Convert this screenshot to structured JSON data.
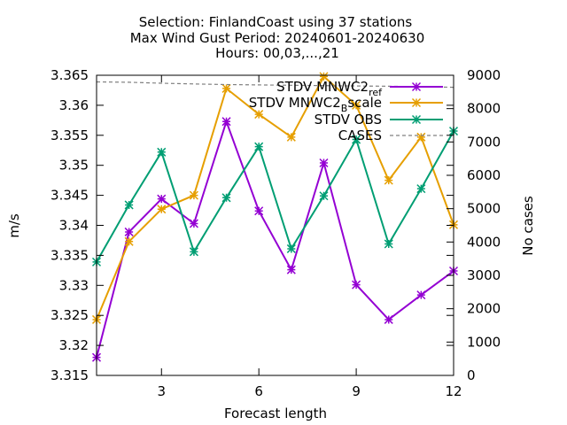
{
  "chart_data": {
    "type": "line",
    "title_lines": [
      "Selection: FinlandCoast using    37 stations",
      "Max Wind Gust   Period: 20240601-20240630",
      "Hours: 00,03,...,21"
    ],
    "xlabel": "Forecast length",
    "ylabel": "m/s",
    "y2label": "No cases",
    "xlim": [
      1,
      12
    ],
    "ylim": [
      3.315,
      3.365
    ],
    "y2lim": [
      0,
      9000
    ],
    "xticks": [
      3,
      6,
      9,
      12
    ],
    "yticks": [
      3.315,
      3.32,
      3.325,
      3.33,
      3.335,
      3.34,
      3.345,
      3.35,
      3.355,
      3.36,
      3.365
    ],
    "y2ticks": [
      0,
      1000,
      2000,
      3000,
      4000,
      5000,
      6000,
      7000,
      8000,
      9000
    ],
    "legend_position": "top-right",
    "grid": false,
    "x": [
      1,
      2,
      3,
      4,
      5,
      6,
      7,
      8,
      9,
      10,
      11,
      12
    ],
    "series": [
      {
        "name": "STDV MNWC2_ref",
        "label_main": "STDV MNWC2",
        "label_sub": "ref",
        "color": "#9400d3",
        "axis": "y1",
        "values": [
          3.318,
          3.3389,
          3.3444,
          3.3403,
          3.3573,
          3.3424,
          3.3326,
          3.3504,
          3.3301,
          3.3243,
          3.3284,
          3.3324
        ]
      },
      {
        "name": "STDV MNWC2_Bscale",
        "label_main": "STDV MNWC2",
        "label_sub": "B",
        "label_tail": "scale",
        "color": "#e69f00",
        "axis": "y1",
        "values": [
          3.3243,
          3.3373,
          3.3427,
          3.345,
          3.3628,
          3.3585,
          3.3547,
          3.3648,
          3.36,
          3.3475,
          3.3547,
          3.3401
        ]
      },
      {
        "name": "STDV OBS",
        "label_main": "STDV OBS",
        "color": "#009e73",
        "axis": "y1",
        "values": [
          3.3339,
          3.3434,
          3.3522,
          3.3356,
          3.3446,
          3.3531,
          3.3361,
          3.3449,
          3.3543,
          3.3369,
          3.3461,
          3.3557
        ]
      },
      {
        "name": "CASES",
        "label_main": "CASES",
        "color": "#808080",
        "axis": "y2",
        "dashed": true,
        "values": [
          8800,
          8790,
          8760,
          8740,
          8720,
          8710,
          8700,
          8690,
          8680,
          8670,
          8660,
          8640
        ]
      }
    ]
  }
}
